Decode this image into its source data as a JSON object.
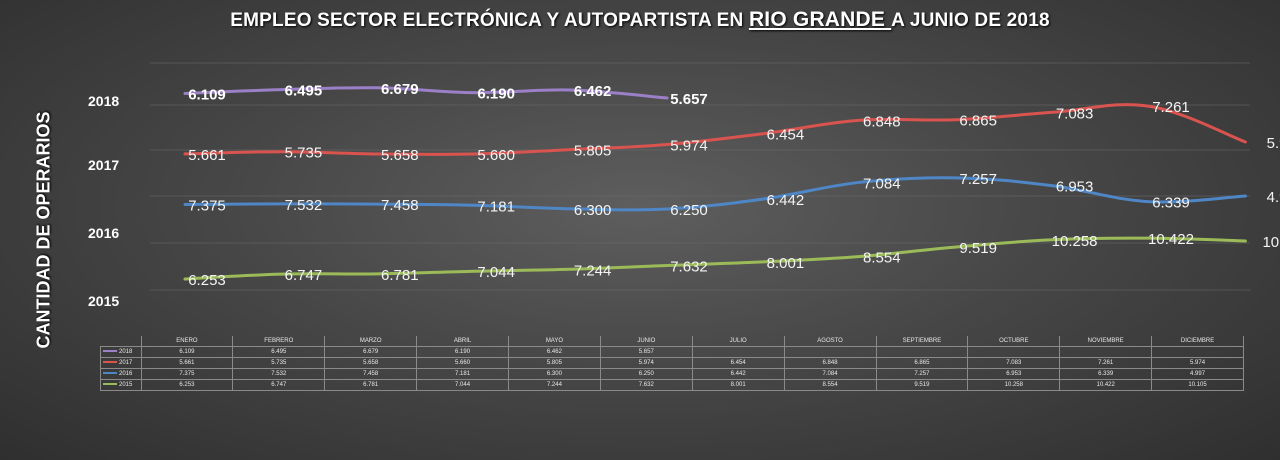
{
  "title_parts": [
    "EMPLEO SECTOR ELECTRÓNICA Y AUTOPARTISTA  EN ",
    "RIO GRANDE ",
    "A JUNIO DE 2018"
  ],
  "ylabel": "CANTIDAD DE OPERARIOS",
  "chart_data": {
    "type": "line",
    "title": "EMPLEO SECTOR ELECTRÓNICA Y AUTOPARTISTA  EN RIO GRANDE A JUNIO DE 2018",
    "ylabel": "CANTIDAD DE OPERARIOS",
    "categories": [
      "ENERO",
      "FEBRERO",
      "MARZO",
      "ABRIL",
      "MAYO",
      "JUNIO",
      "JULIO",
      "AGOSTO",
      "SEPTIEMBRE",
      "OCTUBRE",
      "NOVIEMBRE",
      "DICIEMBRE"
    ],
    "ytick_labels": [
      "2018",
      "2017",
      "2016",
      "2015"
    ],
    "grid": true,
    "legend": "data-table-below",
    "series": [
      {
        "name": "2018",
        "color": "#9b7fc7",
        "values": [
          6109,
          6495,
          6679,
          6190,
          6462,
          5657,
          null,
          null,
          null,
          null,
          null,
          null
        ],
        "labels": [
          "6.109",
          "6.495",
          "6.679",
          "6.190",
          "6.462",
          "5.657",
          "",
          "",
          "",
          "",
          "",
          ""
        ]
      },
      {
        "name": "2017",
        "color": "#d9534f",
        "values": [
          5661,
          5735,
          5658,
          5660,
          5805,
          5974,
          6454,
          6848,
          6865,
          7083,
          7261,
          5974
        ],
        "labels": [
          "5.661",
          "5.735",
          "5.658",
          "5.660",
          "5.805",
          "5.974",
          "6.454",
          "6.848",
          "6.865",
          "7.083",
          "7.261",
          "5.974"
        ]
      },
      {
        "name": "2016",
        "color": "#4f86c6",
        "values": [
          7375,
          7532,
          7458,
          7181,
          6300,
          6250,
          6442,
          7084,
          7257,
          6953,
          6339,
          4997
        ],
        "labels": [
          "7.375",
          "7.532",
          "7.458",
          "7.181",
          "6.300",
          "6.250",
          "6.442",
          "7.084",
          "7.257",
          "6.953",
          "6.339",
          "4.997"
        ]
      },
      {
        "name": "2015",
        "color": "#9bbb59",
        "values": [
          6253,
          6747,
          6781,
          7044,
          7244,
          7632,
          8001,
          8554,
          9519,
          10258,
          10422,
          10105
        ],
        "labels": [
          "6.253",
          "6.747",
          "6.781",
          "7.044",
          "7.244",
          "7.632",
          "8.001",
          "8.554",
          "9.519",
          "10.258",
          "10.422",
          "10.105"
        ]
      }
    ]
  }
}
